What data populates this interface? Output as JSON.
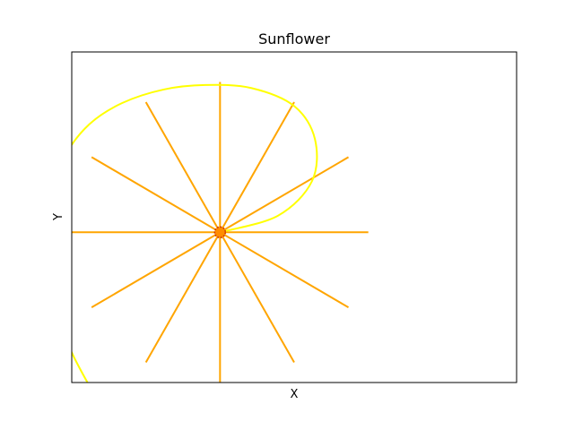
{
  "chart_data": {
    "type": "line",
    "title": "Sunflower",
    "xlabel": "X",
    "ylabel": "Y",
    "xlim": [
      -5,
      10
    ],
    "ylim": [
      -5,
      6
    ],
    "xticks": [],
    "yticks": [],
    "grid": false,
    "center": [
      0,
      0
    ],
    "petals": {
      "count": 12,
      "length": 5,
      "angles_deg": [
        0,
        30,
        60,
        90,
        120,
        150,
        180,
        210,
        240,
        270,
        300,
        330
      ],
      "color": "#ffa500"
    },
    "spiral": {
      "color": "#ffff00",
      "points": [
        [
          0,
          0
        ],
        [
          1.95,
          0.55
        ],
        [
          3.1,
          1.7
        ],
        [
          3.2,
          3.1
        ],
        [
          2.5,
          4.2
        ],
        [
          1.05,
          4.8
        ],
        [
          -0.5,
          4.9
        ],
        [
          -1.9,
          4.75
        ],
        [
          -3.3,
          4.3
        ],
        [
          -4.4,
          3.6
        ],
        [
          -5.2,
          2.6
        ],
        [
          -5.8,
          1.2
        ],
        [
          -6.0,
          -0.5
        ],
        [
          -5.7,
          -2.3
        ],
        [
          -5.0,
          -4.0
        ],
        [
          -4.3,
          -5.3
        ]
      ]
    },
    "center_marker": {
      "fill": "#ff8c00",
      "edge": "#cc3300"
    }
  }
}
